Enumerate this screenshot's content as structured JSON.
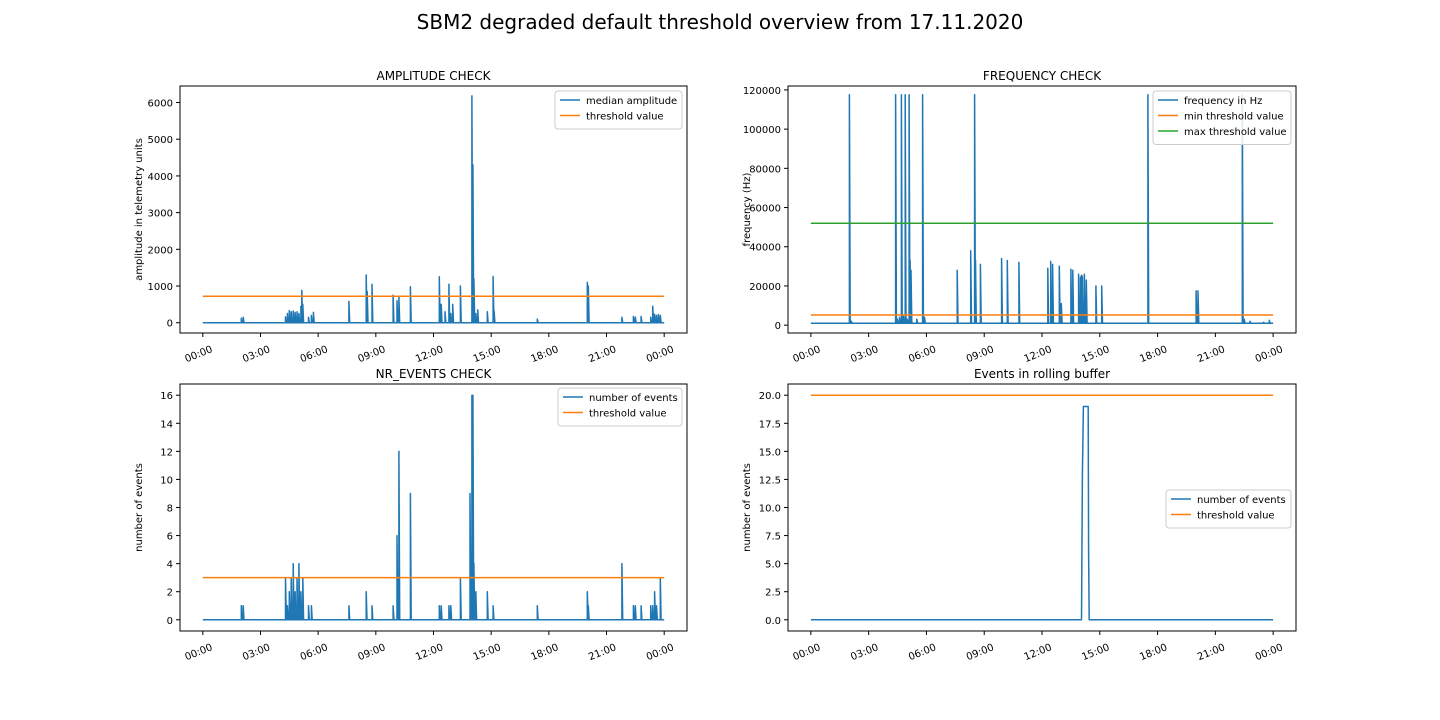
{
  "figure": {
    "title": "SBM2 degraded default threshold overview from 17.11.2020"
  },
  "colors": {
    "blue": "#1f77b4",
    "orange": "#ff7f0e",
    "green": "#2ca02c"
  },
  "chart_data": [
    {
      "type": "line",
      "title": "AMPLITUDE CHECK",
      "xlabel": "",
      "ylabel": "amplitude in telemetry units",
      "xlim": [
        0,
        24
      ],
      "ylim": [
        -280,
        6450
      ],
      "x_tick_values": [
        0,
        3,
        6,
        9,
        12,
        15,
        18,
        21,
        24
      ],
      "x_tick_labels": [
        "00:00",
        "03:00",
        "06:00",
        "09:00",
        "12:00",
        "15:00",
        "18:00",
        "21:00",
        "00:00"
      ],
      "y_tick_values": [
        0,
        1000,
        2000,
        3000,
        4000,
        5000,
        6000
      ],
      "y_tick_labels": [
        "0",
        "1000",
        "2000",
        "3000",
        "4000",
        "5000",
        "6000"
      ],
      "legend": "top-right",
      "series": [
        {
          "name": "median amplitude",
          "color": "#1f77b4",
          "baseline": 0,
          "spikes": [
            [
              2.0,
              120
            ],
            [
              2.1,
              150
            ],
            [
              4.3,
              160
            ],
            [
              4.4,
              250
            ],
            [
              4.5,
              330
            ],
            [
              4.6,
              300
            ],
            [
              4.7,
              320
            ],
            [
              4.8,
              280
            ],
            [
              4.9,
              300
            ],
            [
              5.0,
              250
            ],
            [
              5.1,
              450
            ],
            [
              5.15,
              880
            ],
            [
              5.2,
              500
            ],
            [
              5.5,
              150
            ],
            [
              5.65,
              200
            ],
            [
              5.75,
              280
            ],
            [
              7.6,
              580
            ],
            [
              8.5,
              1300
            ],
            [
              8.55,
              850
            ],
            [
              8.8,
              1050
            ],
            [
              9.9,
              750
            ],
            [
              10.1,
              600
            ],
            [
              10.2,
              700
            ],
            [
              10.8,
              980
            ],
            [
              12.3,
              1250
            ],
            [
              12.4,
              500
            ],
            [
              12.6,
              300
            ],
            [
              12.8,
              1050
            ],
            [
              12.9,
              250
            ],
            [
              13.0,
              500
            ],
            [
              13.4,
              1000
            ],
            [
              14.0,
              6180
            ],
            [
              14.05,
              4300
            ],
            [
              14.1,
              1200
            ],
            [
              14.2,
              250
            ],
            [
              14.3,
              350
            ],
            [
              14.8,
              300
            ],
            [
              15.1,
              1260
            ],
            [
              15.15,
              320
            ],
            [
              17.4,
              100
            ],
            [
              20.0,
              1100
            ],
            [
              20.05,
              1000
            ],
            [
              21.8,
              150
            ],
            [
              22.4,
              170
            ],
            [
              22.5,
              150
            ],
            [
              22.8,
              170
            ],
            [
              23.3,
              150
            ],
            [
              23.4,
              450
            ],
            [
              23.5,
              230
            ],
            [
              23.6,
              200
            ],
            [
              23.7,
              220
            ],
            [
              23.8,
              200
            ]
          ]
        },
        {
          "name": "threshold value",
          "color": "#ff7f0e",
          "constant": 720
        }
      ]
    },
    {
      "type": "line",
      "title": "FREQUENCY CHECK",
      "xlabel": "",
      "ylabel": "frequency (Hz)",
      "xlim": [
        0,
        24
      ],
      "ylim": [
        -4000,
        122000
      ],
      "x_tick_values": [
        0,
        3,
        6,
        9,
        12,
        15,
        18,
        21,
        24
      ],
      "x_tick_labels": [
        "00:00",
        "03:00",
        "06:00",
        "09:00",
        "12:00",
        "15:00",
        "18:00",
        "21:00",
        "00:00"
      ],
      "y_tick_values": [
        0,
        20000,
        40000,
        60000,
        80000,
        100000,
        120000
      ],
      "y_tick_labels": [
        "0",
        "20000",
        "40000",
        "60000",
        "80000",
        "100000",
        "120000"
      ],
      "legend": "top-right",
      "series": [
        {
          "name": "frequency in Hz",
          "color": "#1f77b4",
          "baseline": 1000,
          "spikes": [
            [
              2.0,
              117500
            ],
            [
              2.1,
              2000
            ],
            [
              4.4,
              117500
            ],
            [
              4.5,
              3000
            ],
            [
              4.6,
              4000
            ],
            [
              4.7,
              117500
            ],
            [
              4.8,
              5000
            ],
            [
              4.9,
              117500
            ],
            [
              5.0,
              3000
            ],
            [
              5.1,
              117500
            ],
            [
              5.15,
              33000
            ],
            [
              5.2,
              28000
            ],
            [
              5.5,
              3000
            ],
            [
              5.8,
              117500
            ],
            [
              5.9,
              4000
            ],
            [
              7.6,
              28000
            ],
            [
              8.3,
              38000
            ],
            [
              8.5,
              117500
            ],
            [
              8.55,
              33000
            ],
            [
              8.8,
              31000
            ],
            [
              9.9,
              34000
            ],
            [
              10.2,
              33000
            ],
            [
              10.8,
              32000
            ],
            [
              12.3,
              29000
            ],
            [
              12.45,
              32500
            ],
            [
              12.55,
              31000
            ],
            [
              12.9,
              30000
            ],
            [
              13.0,
              11000
            ],
            [
              13.5,
              28500
            ],
            [
              13.6,
              28000
            ],
            [
              13.9,
              26000
            ],
            [
              14.0,
              24500
            ],
            [
              14.05,
              25500
            ],
            [
              14.1,
              25000
            ],
            [
              14.2,
              26000
            ],
            [
              14.3,
              23000
            ],
            [
              14.8,
              20000
            ],
            [
              15.1,
              20000
            ],
            [
              17.5,
              117500
            ],
            [
              20.0,
              17500
            ],
            [
              20.1,
              17500
            ],
            [
              22.4,
              117500
            ],
            [
              22.5,
              3000
            ],
            [
              22.8,
              2000
            ],
            [
              23.5,
              1500
            ],
            [
              23.8,
              2500
            ]
          ]
        },
        {
          "name": "min threshold value",
          "color": "#ff7f0e",
          "constant": 5200
        },
        {
          "name": "max threshold value",
          "color": "#2ca02c",
          "constant": 52000
        }
      ]
    },
    {
      "type": "line",
      "title": "NR_EVENTS CHECK",
      "xlabel": "",
      "ylabel": "number of events",
      "xlim": [
        0,
        24
      ],
      "ylim": [
        -0.8,
        16.8
      ],
      "x_tick_values": [
        0,
        3,
        6,
        9,
        12,
        15,
        18,
        21,
        24
      ],
      "x_tick_labels": [
        "00:00",
        "03:00",
        "06:00",
        "09:00",
        "12:00",
        "15:00",
        "18:00",
        "21:00",
        "00:00"
      ],
      "y_tick_values": [
        0,
        2,
        4,
        6,
        8,
        10,
        12,
        14,
        16
      ],
      "y_tick_labels": [
        "0",
        "2",
        "4",
        "6",
        "8",
        "10",
        "12",
        "14",
        "16"
      ],
      "legend": "top-right",
      "series": [
        {
          "name": "number of events",
          "color": "#1f77b4",
          "baseline": 0,
          "spikes": [
            [
              2.0,
              1
            ],
            [
              2.1,
              1
            ],
            [
              4.3,
              3
            ],
            [
              4.4,
              1
            ],
            [
              4.5,
              2
            ],
            [
              4.6,
              3
            ],
            [
              4.7,
              4
            ],
            [
              4.8,
              2
            ],
            [
              4.9,
              3
            ],
            [
              5.0,
              4
            ],
            [
              5.1,
              2
            ],
            [
              5.2,
              3
            ],
            [
              5.5,
              1
            ],
            [
              5.65,
              1
            ],
            [
              7.6,
              1
            ],
            [
              8.5,
              2
            ],
            [
              8.8,
              1
            ],
            [
              9.9,
              1
            ],
            [
              10.1,
              6
            ],
            [
              10.2,
              12
            ],
            [
              10.8,
              9
            ],
            [
              12.3,
              1
            ],
            [
              12.4,
              1
            ],
            [
              12.8,
              1
            ],
            [
              12.9,
              1
            ],
            [
              13.4,
              3
            ],
            [
              13.9,
              9
            ],
            [
              14.0,
              16
            ],
            [
              14.05,
              16
            ],
            [
              14.1,
              4
            ],
            [
              14.2,
              2
            ],
            [
              14.8,
              2
            ],
            [
              15.1,
              1
            ],
            [
              17.4,
              1
            ],
            [
              20.0,
              2
            ],
            [
              20.05,
              1
            ],
            [
              21.8,
              4
            ],
            [
              22.4,
              1
            ],
            [
              22.5,
              1
            ],
            [
              22.8,
              1
            ],
            [
              23.3,
              1
            ],
            [
              23.4,
              1
            ],
            [
              23.5,
              2
            ],
            [
              23.6,
              1
            ],
            [
              23.8,
              3
            ]
          ]
        },
        {
          "name": "threshold value",
          "color": "#ff7f0e",
          "constant": 3
        }
      ]
    },
    {
      "type": "line",
      "title": "Events in rolling buffer",
      "xlabel": "",
      "ylabel": "number of events",
      "xlim": [
        0,
        24
      ],
      "ylim": [
        -1.0,
        21.0
      ],
      "x_tick_values": [
        0,
        3,
        6,
        9,
        12,
        15,
        18,
        21,
        24
      ],
      "x_tick_labels": [
        "00:00",
        "03:00",
        "06:00",
        "09:00",
        "12:00",
        "15:00",
        "18:00",
        "21:00",
        "00:00"
      ],
      "y_tick_values": [
        0.0,
        2.5,
        5.0,
        7.5,
        10.0,
        12.5,
        15.0,
        17.5,
        20.0
      ],
      "y_tick_labels": [
        "0.0",
        "2.5",
        "5.0",
        "7.5",
        "10.0",
        "12.5",
        "15.0",
        "17.5",
        "20.0"
      ],
      "legend": "center-right",
      "series": [
        {
          "name": "number of events",
          "color": "#1f77b4",
          "points": [
            [
              0,
              0
            ],
            [
              14.05,
              0
            ],
            [
              14.1,
              13
            ],
            [
              14.15,
              19
            ],
            [
              14.4,
              19
            ],
            [
              14.42,
              6
            ],
            [
              14.45,
              0
            ],
            [
              24,
              0
            ]
          ]
        },
        {
          "name": "threshold value",
          "color": "#ff7f0e",
          "constant": 20
        }
      ]
    }
  ]
}
